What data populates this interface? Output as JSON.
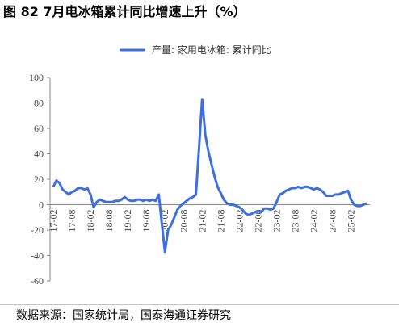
{
  "chart_data": {
    "type": "line",
    "title": "图 82 7月电冰箱累计同比增速上升（%）",
    "source": "数据来源：国家统计局，国泰海通证券研究",
    "categories": [
      "17-02",
      null,
      null,
      null,
      null,
      null,
      "17-08",
      null,
      null,
      null,
      null,
      null,
      "18-02",
      null,
      null,
      null,
      null,
      null,
      "18-08",
      null,
      null,
      null,
      null,
      null,
      "19-02",
      null,
      null,
      null,
      null,
      null,
      "19-08",
      null,
      null,
      null,
      null,
      null,
      "20-02",
      null,
      null,
      null,
      null,
      null,
      "20-08",
      null,
      null,
      null,
      null,
      null,
      "21-02",
      null,
      null,
      null,
      null,
      null,
      "21-08",
      null,
      null,
      null,
      null,
      null,
      "22-02",
      null,
      null,
      null,
      null,
      null,
      "22-08",
      null,
      null,
      null,
      null,
      null,
      "23-02",
      null,
      null,
      null,
      null,
      null,
      "23-08",
      null,
      null,
      null,
      null,
      null,
      "24-02",
      null,
      null,
      null,
      null,
      null,
      "24-08",
      null,
      null,
      null,
      null,
      null,
      "25-02",
      null,
      null,
      null,
      null,
      null
    ],
    "series": [
      {
        "name": "产量: 家用电冰箱: 累计同比",
        "color": "#3e6fe0",
        "values": [
          14,
          19,
          17,
          12,
          10,
          8,
          10,
          11,
          13,
          13,
          12,
          13,
          8,
          -2,
          2,
          4,
          3,
          2,
          2,
          2,
          3,
          3,
          4,
          6,
          4,
          3,
          3,
          4,
          4,
          3,
          4,
          3,
          4,
          3,
          8,
          -15,
          -37,
          -20,
          -16,
          -10,
          -4,
          -1,
          1,
          3,
          5,
          6,
          8,
          45,
          83,
          55,
          42,
          32,
          22,
          14,
          9,
          4,
          1,
          0,
          0,
          -1,
          -2,
          -4,
          -7,
          -8,
          -7,
          -6,
          -5,
          -6,
          -3,
          -3,
          -4,
          -3,
          2,
          8,
          9,
          11,
          12,
          13,
          13,
          14,
          13,
          14,
          14,
          13,
          12,
          13,
          12,
          10,
          7,
          7,
          7,
          8,
          8,
          9,
          10,
          11,
          4,
          0,
          -1,
          -1,
          0,
          1
        ]
      }
    ],
    "ylim": [
      -60,
      100
    ],
    "yticks": [
      -60,
      -40,
      -20,
      0,
      20,
      40,
      60,
      80,
      100
    ],
    "legend": "top"
  }
}
